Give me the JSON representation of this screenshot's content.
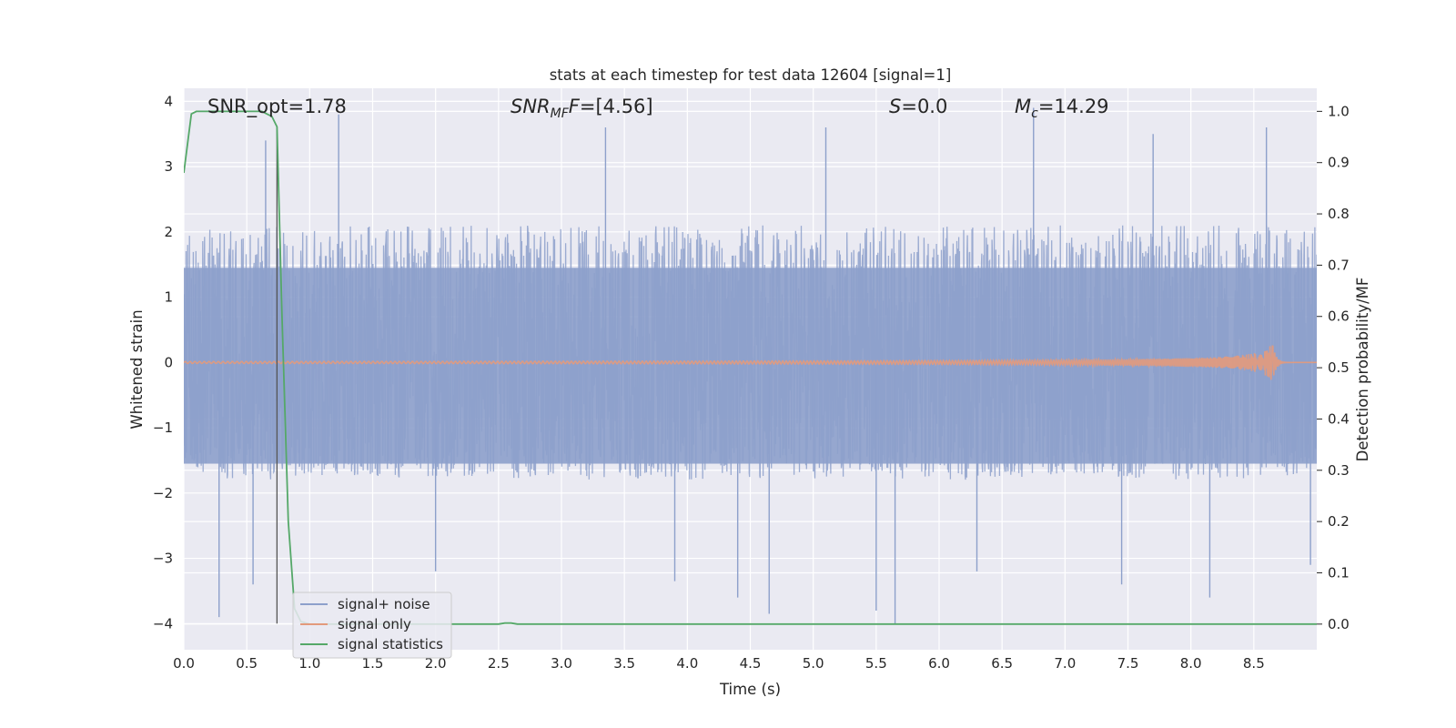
{
  "chart_data": {
    "type": "line",
    "title": "stats at each timestep for test data 12604 [signal=1]",
    "xlabel": "Time (s)",
    "ylabel": "Whitened strain",
    "ylabel_right": "Detection probability/MF",
    "xlim": [
      0.0,
      9.0
    ],
    "ylim": [
      -4.4,
      4.2
    ],
    "ylim_right": [
      -0.05,
      1.045
    ],
    "x_ticks": [
      "0.0",
      "0.5",
      "1.0",
      "1.5",
      "2.0",
      "2.5",
      "3.0",
      "3.5",
      "4.0",
      "4.5",
      "5.0",
      "5.5",
      "6.0",
      "6.5",
      "7.0",
      "7.5",
      "8.0",
      "8.5"
    ],
    "y_ticks": [
      "−4",
      "−3",
      "−2",
      "−1",
      "0",
      "1",
      "2",
      "3",
      "4"
    ],
    "y_right_ticks": [
      "0.0",
      "0.1",
      "0.2",
      "0.3",
      "0.4",
      "0.5",
      "0.6",
      "0.7",
      "0.8",
      "0.9",
      "1.0"
    ],
    "grid": true,
    "legend_position": "lower-left",
    "annotations": {
      "snr_opt": "SNR_opt=1.78",
      "snr_mf_main": "SNR",
      "snr_mf_sub": "MF",
      "snr_mf_value": "=[4.56]",
      "s_main": "S",
      "s_value": "=0.0",
      "mc_main": "M",
      "mc_sub": "c",
      "mc_value": "=14.29"
    },
    "vertical_marker_x": 0.74,
    "series": [
      {
        "name": "signal+ noise",
        "color": "#8da0cb",
        "kind": "noise",
        "envelope_typical": [
          -1.8,
          2.1
        ],
        "envelope_extremes": [
          -4.0,
          3.9
        ],
        "spikes": [
          [
            0.28,
            -3.9
          ],
          [
            0.55,
            -3.4
          ],
          [
            0.65,
            3.4
          ],
          [
            1.23,
            3.8
          ],
          [
            2.0,
            -3.2
          ],
          [
            3.35,
            3.6
          ],
          [
            3.9,
            -3.35
          ],
          [
            4.4,
            -3.6
          ],
          [
            4.65,
            -3.85
          ],
          [
            5.1,
            3.6
          ],
          [
            5.5,
            -3.8
          ],
          [
            5.65,
            -4.0
          ],
          [
            6.3,
            -3.2
          ],
          [
            6.75,
            3.9
          ],
          [
            7.45,
            -3.4
          ],
          [
            7.7,
            3.5
          ],
          [
            8.15,
            -3.6
          ],
          [
            8.6,
            3.6
          ],
          [
            8.95,
            -3.1
          ]
        ]
      },
      {
        "name": "signal only",
        "color": "#e39a7c",
        "kind": "chirp",
        "merger_time": 8.65,
        "peak_amplitude": 0.3
      },
      {
        "name": "signal statistics",
        "color": "#55a868",
        "axis": "right",
        "x": [
          0.0,
          0.06,
          0.1,
          0.2,
          0.5,
          0.62,
          0.7,
          0.74,
          0.78,
          0.83,
          0.88,
          0.93,
          1.0,
          2.5,
          2.55,
          2.6,
          2.65,
          9.0
        ],
        "y": [
          0.88,
          0.995,
          1.0,
          1.0,
          1.0,
          1.0,
          0.99,
          0.97,
          0.6,
          0.2,
          0.03,
          0.005,
          0.0,
          0.0,
          0.002,
          0.002,
          0.0,
          0.0
        ]
      }
    ]
  }
}
